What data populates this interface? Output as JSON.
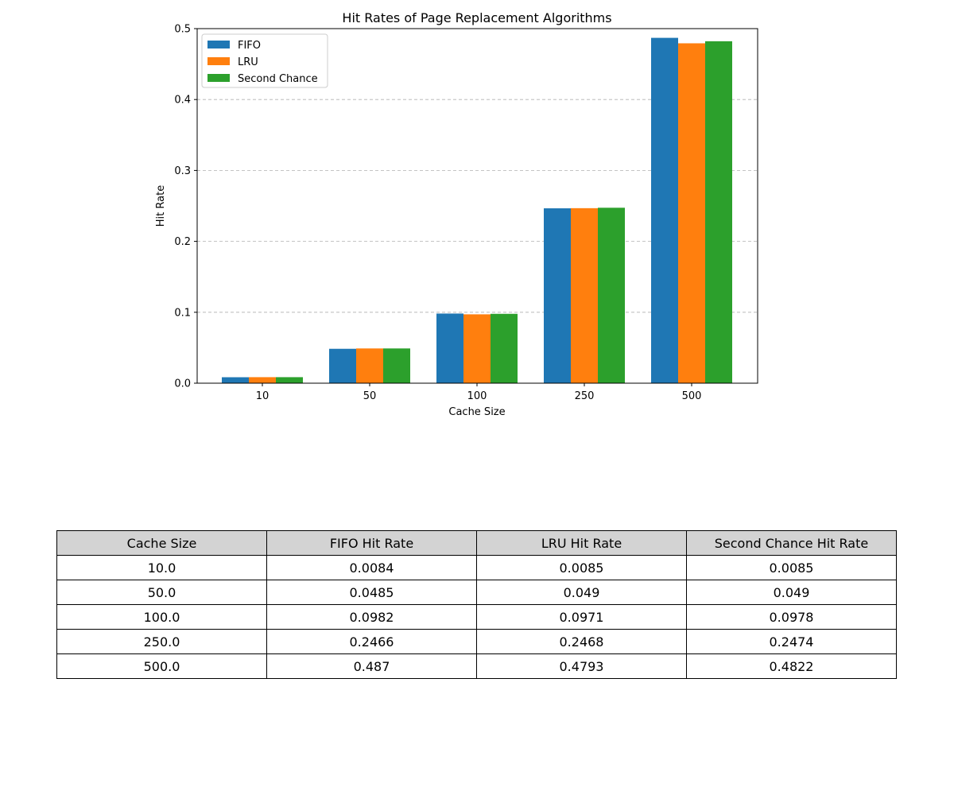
{
  "chart_data": {
    "type": "bar",
    "title": "Hit Rates of Page Replacement Algorithms",
    "xlabel": "Cache Size",
    "ylabel": "Hit Rate",
    "categories": [
      "10",
      "50",
      "100",
      "250",
      "500"
    ],
    "ylim": [
      0,
      0.5
    ],
    "yticks": [
      "0.0",
      "0.1",
      "0.2",
      "0.3",
      "0.4",
      "0.5"
    ],
    "grid": "y-dashed",
    "legend_position": "top-left",
    "series": [
      {
        "name": "FIFO",
        "color": "#1f77b4",
        "values": [
          0.0084,
          0.0485,
          0.0982,
          0.2466,
          0.487
        ]
      },
      {
        "name": "LRU",
        "color": "#ff7f0e",
        "values": [
          0.0085,
          0.049,
          0.0971,
          0.2468,
          0.4793
        ]
      },
      {
        "name": "Second Chance",
        "color": "#2ca02c",
        "values": [
          0.0085,
          0.049,
          0.0978,
          0.2474,
          0.4822
        ]
      }
    ]
  },
  "table": {
    "headers": [
      "Cache Size",
      "FIFO Hit Rate",
      "LRU Hit Rate",
      "Second Chance Hit Rate"
    ],
    "header_color": "#d3d3d3",
    "rows": [
      [
        "10.0",
        "0.0084",
        "0.0085",
        "0.0085"
      ],
      [
        "50.0",
        "0.0485",
        "0.049",
        "0.049"
      ],
      [
        "100.0",
        "0.0982",
        "0.0971",
        "0.0978"
      ],
      [
        "250.0",
        "0.2466",
        "0.2468",
        "0.2474"
      ],
      [
        "500.0",
        "0.487",
        "0.4793",
        "0.4822"
      ]
    ]
  }
}
